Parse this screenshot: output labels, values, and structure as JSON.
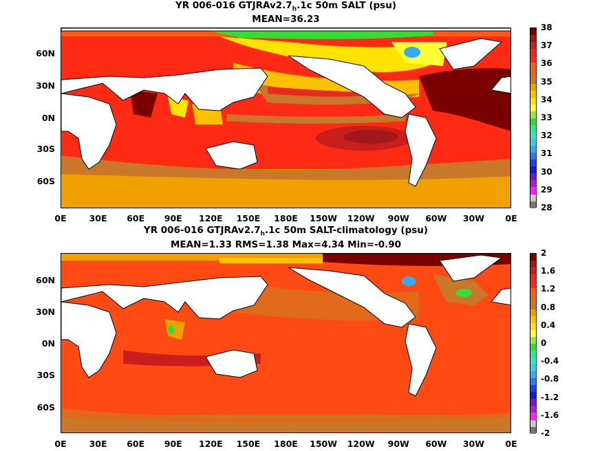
{
  "top": {
    "title_pre": "YR 006-016 GTJRAv2.7",
    "title_sub": "h",
    "title_post": ".1c 50m SALT (psu)",
    "subtitle": "MEAN=36.23",
    "colorbar_ticks": [
      "38",
      "37",
      "36",
      "35",
      "34",
      "33",
      "32",
      "31",
      "30",
      "29",
      "28"
    ],
    "colorbar_colors": [
      "#7a0000",
      "#a01818",
      "#c81e1e",
      "#e62a1e",
      "#ff2a14",
      "#ff5a14",
      "#e06a1a",
      "#c87828",
      "#f0a000",
      "#ffc000",
      "#ffe200",
      "#ffff33",
      "#9ee23c",
      "#33dd33",
      "#2ee88a",
      "#33e2cc",
      "#3ccce6",
      "#33aaff",
      "#3377ff",
      "#2244ee",
      "#1c1cd6",
      "#6a1ad8",
      "#aa22cc",
      "#ff22ff",
      "#c8c8c8",
      "#777777"
    ]
  },
  "bottom": {
    "title_pre": "YR 006-016 GTJRAv2.7",
    "title_sub": "h",
    "title_post": ".1c 50m SALT-climatology (psu)",
    "subtitle": "MEAN=1.33   RMS=1.38   Max=4.34   Min=-0.90",
    "colorbar_ticks": [
      "2",
      "1.6",
      "1.2",
      "0.8",
      "0.4",
      "0",
      "-0.4",
      "-0.8",
      "-1.2",
      "-1.6",
      "-2"
    ],
    "colorbar_colors": [
      "#7a0000",
      "#a01818",
      "#c81e1e",
      "#e62a1e",
      "#ff2a14",
      "#ff5a14",
      "#e06a1a",
      "#c87828",
      "#f0a000",
      "#ffc000",
      "#ffe200",
      "#ffff33",
      "#9ee23c",
      "#33dd33",
      "#2ee88a",
      "#33e2cc",
      "#3ccce6",
      "#33aaff",
      "#3377ff",
      "#2244ee",
      "#1c1cd6",
      "#6a1ad8",
      "#aa22cc",
      "#ff22ff",
      "#c8c8c8",
      "#777777"
    ]
  },
  "lat_labels": [
    "60N",
    "30N",
    "0N",
    "30S",
    "60S"
  ],
  "lon_labels": [
    "0E",
    "30E",
    "60E",
    "90E",
    "120E",
    "150E",
    "180E",
    "150W",
    "120W",
    "90W",
    "60W",
    "30W",
    "0E"
  ],
  "colors": {
    "land": "#ffffff",
    "coast": "#000000",
    "ocean_base": "#ff2a14",
    "ocean_bottom_base": "#ff4a14"
  }
}
